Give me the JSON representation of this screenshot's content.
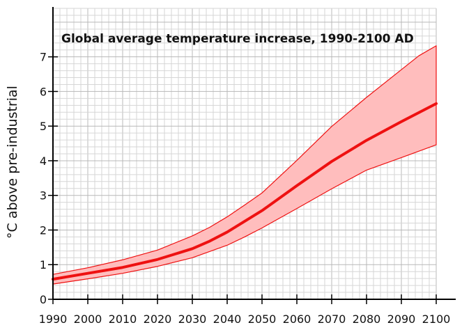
{
  "chart_data": {
    "type": "area",
    "title": "Global average temperature increase, 1990-2100 AD",
    "xlabel": "",
    "ylabel": "°C above pre-industrial",
    "xlim": [
      1990,
      2100
    ],
    "ylim": [
      0,
      8.4
    ],
    "x_ticks": [
      1990,
      2000,
      2010,
      2020,
      2030,
      2040,
      2050,
      2060,
      2070,
      2080,
      2090,
      2100
    ],
    "y_ticks": [
      0,
      1,
      2,
      3,
      4,
      5,
      6,
      7
    ],
    "grid": true,
    "legend": "none",
    "colors": {
      "line": "#ee1111",
      "band_fill": "#ffbdbd",
      "band_edge": "#ee1111",
      "grid_minor": "#d6d6d6",
      "grid_major": "#b8b8b8"
    },
    "series": [
      {
        "role": "central",
        "x": [
          1990,
          2000,
          2010,
          2020,
          2030,
          2035,
          2040,
          2050,
          2060,
          2070,
          2080,
          2090,
          2100
        ],
        "values": [
          0.58,
          0.75,
          0.92,
          1.15,
          1.46,
          1.68,
          1.94,
          2.56,
          3.28,
          3.98,
          4.59,
          5.13,
          5.65
        ]
      },
      {
        "role": "upper",
        "x": [
          1990,
          2000,
          2010,
          2020,
          2030,
          2035,
          2040,
          2045,
          2050,
          2060,
          2070,
          2080,
          2090,
          2095,
          2100
        ],
        "values": [
          0.72,
          0.91,
          1.14,
          1.42,
          1.83,
          2.08,
          2.38,
          2.72,
          3.07,
          4.01,
          4.99,
          5.83,
          6.63,
          7.03,
          7.32
        ]
      },
      {
        "role": "lower",
        "x": [
          1990,
          2000,
          2010,
          2020,
          2030,
          2040,
          2045,
          2050,
          2060,
          2070,
          2080,
          2090,
          2100
        ],
        "values": [
          0.44,
          0.59,
          0.75,
          0.95,
          1.2,
          1.56,
          1.8,
          2.06,
          2.62,
          3.19,
          3.73,
          4.09,
          4.46
        ]
      }
    ]
  }
}
